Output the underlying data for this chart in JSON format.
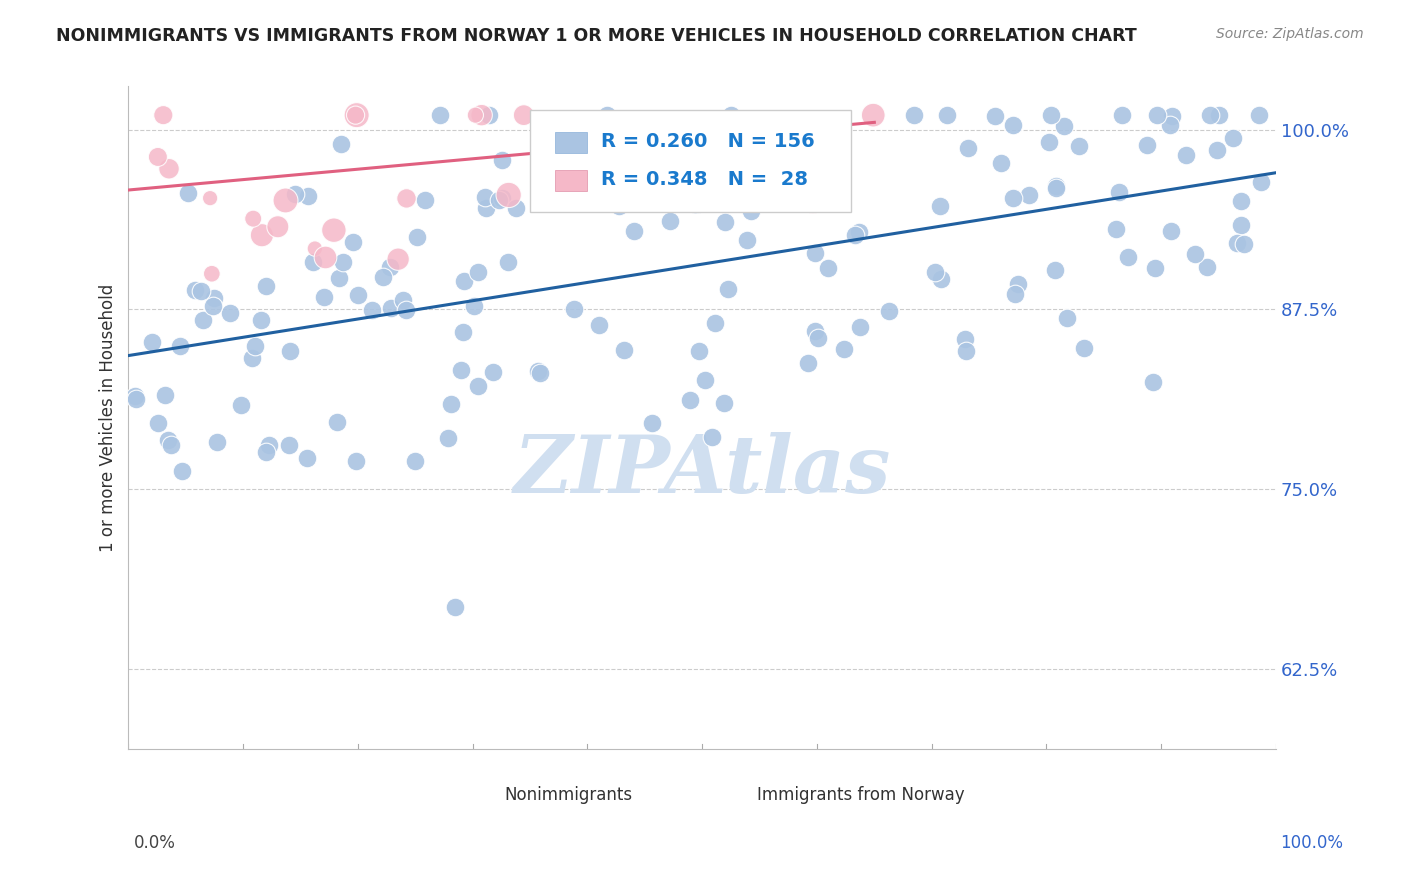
{
  "title": "NONIMMIGRANTS VS IMMIGRANTS FROM NORWAY 1 OR MORE VEHICLES IN HOUSEHOLD CORRELATION CHART",
  "source": "Source: ZipAtlas.com",
  "ylabel": "1 or more Vehicles in Household",
  "xlim": [
    0.0,
    1.0
  ],
  "ylim": [
    0.57,
    1.03
  ],
  "blue_R": 0.26,
  "blue_N": 156,
  "pink_R": 0.348,
  "pink_N": 28,
  "blue_color": "#aac4e2",
  "pink_color": "#f5b8c8",
  "blue_line_color": "#2060a0",
  "pink_line_color": "#e06080",
  "watermark": "ZIPAtlas",
  "watermark_color": "#d0dff0",
  "background_color": "#ffffff",
  "grid_color": "#cccccc",
  "title_color": "#222222",
  "legend_value_color": "#1a7acd",
  "ytick_vals": [
    0.625,
    0.75,
    0.875,
    1.0
  ],
  "ytick_labels": [
    "62.5%",
    "75.0%",
    "87.5%",
    "100.0%"
  ],
  "blue_trend_x": [
    0.0,
    1.0
  ],
  "blue_trend_y": [
    0.843,
    0.97
  ],
  "pink_trend_x": [
    0.0,
    0.65
  ],
  "pink_trend_y": [
    0.958,
    1.005
  ]
}
